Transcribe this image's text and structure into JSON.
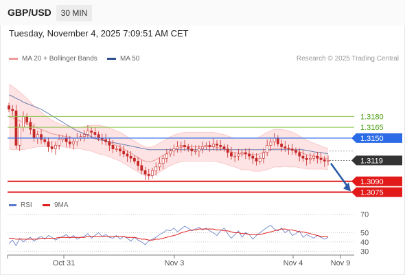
{
  "header": {
    "symbol": "GBP/USD",
    "timeframe": "30 MIN"
  },
  "datetime": "Tuesday, November 4, 2025 7:09:51 AM CET",
  "legend": {
    "ma20_label": "MA 20 + Bollinger Bands",
    "ma50_label": "MA 50",
    "credit": "Research © 2025 Trading Central",
    "rsi_label": "RSI",
    "ma9_label": "9MA"
  },
  "colors": {
    "candle": "#c62828",
    "ma50": "#6b7fb0",
    "ma20": "#ef9a9a",
    "band_fill": "#fde3e3",
    "resistance_line": "#8bc34a",
    "resistance_text": "#4a9e13",
    "pivot": "#2b6be6",
    "support": "#e21a1a",
    "arrow": "#2b5ba8",
    "rsi": "#6f86c8",
    "rsi_ma": "#e21a1a"
  },
  "chart_data": [
    {
      "type": "candlestick",
      "title": "GBP/USD",
      "timeframe": "30 MIN",
      "x_tick_labels": [
        "Oct 31",
        "Nov 3",
        "Nov 4",
        "Nov 9"
      ],
      "ylim": [
        1.3065,
        1.323
      ],
      "levels": [
        {
          "value": 1.318,
          "label": "1.3180",
          "role": "resistance"
        },
        {
          "value": 1.3165,
          "label": "1.3165",
          "role": "resistance"
        },
        {
          "value": 1.315,
          "label": "1.3150",
          "role": "pivot"
        },
        {
          "value": 1.309,
          "label": "1.3090",
          "role": "support"
        },
        {
          "value": 1.3075,
          "label": "1.3075",
          "role": "support"
        }
      ],
      "last_price": {
        "value": 1.3119,
        "label": "1.3119"
      },
      "forecast_arrow": {
        "from": 1.3115,
        "to": 1.3078
      },
      "closes": [
        1.319,
        1.3188,
        1.314,
        1.3165,
        1.318,
        1.3172,
        1.3162,
        1.315,
        1.3155,
        1.3148,
        1.3145,
        1.3138,
        1.3135,
        1.314,
        1.3148,
        1.315,
        1.3145,
        1.3142,
        1.3145,
        1.315,
        1.3152,
        1.3155,
        1.316,
        1.3158,
        1.3155,
        1.315,
        1.3148,
        1.3145,
        1.314,
        1.3135,
        1.3135,
        1.3132,
        1.3128,
        1.3125,
        1.3122,
        1.3118,
        1.3112,
        1.3105,
        1.31,
        1.3098,
        1.3105,
        1.311,
        1.3115,
        1.3122,
        1.3128,
        1.3132,
        1.3135,
        1.3138,
        1.314,
        1.3138,
        1.3135,
        1.3132,
        1.3132,
        1.3135,
        1.3138,
        1.314,
        1.3138,
        1.3142,
        1.314,
        1.3138,
        1.3135,
        1.313,
        1.3125,
        1.3125,
        1.3128,
        1.313,
        1.3128,
        1.3125,
        1.3122,
        1.3118,
        1.3122,
        1.313,
        1.314,
        1.3145,
        1.315,
        1.3142,
        1.3138,
        1.3136,
        1.3135,
        1.3133,
        1.313,
        1.3125,
        1.3122,
        1.312,
        1.3122,
        1.3125,
        1.3122,
        1.312,
        1.3118,
        1.3119
      ],
      "ma50": [
        1.321,
        1.3208,
        1.3205,
        1.3203,
        1.32,
        1.3198,
        1.3196,
        1.3194,
        1.3192,
        1.319,
        1.3187,
        1.3184,
        1.3181,
        1.3178,
        1.3175,
        1.3172,
        1.3169,
        1.3166,
        1.3163,
        1.316,
        1.3158,
        1.3156,
        1.3154,
        1.3152,
        1.315,
        1.3148,
        1.3147,
        1.3146,
        1.3145,
        1.3144,
        1.3143,
        1.3142,
        1.3141,
        1.314,
        1.3139,
        1.3138,
        1.3137,
        1.3136,
        1.3135,
        1.3134,
        1.3134,
        1.3134,
        1.3134,
        1.3134,
        1.3134,
        1.3134,
        1.3134,
        1.3134,
        1.3134,
        1.3134,
        1.3134,
        1.3134,
        1.3134,
        1.3134,
        1.3134,
        1.3134,
        1.3134,
        1.3134,
        1.3134,
        1.3134,
        1.3134,
        1.3134,
        1.3134,
        1.3134,
        1.3134,
        1.3134,
        1.3134,
        1.3134,
        1.3134,
        1.3134,
        1.3134,
        1.3134,
        1.3134,
        1.3134,
        1.3134,
        1.3134,
        1.3134,
        1.3134,
        1.3134,
        1.3134,
        1.3134,
        1.3134,
        1.3134,
        1.3133,
        1.3132,
        1.3131,
        1.313,
        1.313,
        1.3129,
        1.3128
      ],
      "ma20": [
        1.318,
        1.3178,
        1.3176,
        1.3174,
        1.3172,
        1.317,
        1.3168,
        1.3166,
        1.3164,
        1.3162,
        1.316,
        1.3158,
        1.3156,
        1.3155,
        1.3154,
        1.3153,
        1.3152,
        1.3151,
        1.315,
        1.315,
        1.315,
        1.315,
        1.315,
        1.315,
        1.3149,
        1.3148,
        1.3147,
        1.3146,
        1.3144,
        1.3142,
        1.314,
        1.3138,
        1.3135,
        1.3132,
        1.3129,
        1.3126,
        1.3123,
        1.312,
        1.3118,
        1.3117,
        1.3118,
        1.312,
        1.3123,
        1.3126,
        1.3129,
        1.3132,
        1.3134,
        1.3136,
        1.3137,
        1.3138,
        1.3138,
        1.3138,
        1.3138,
        1.3138,
        1.3138,
        1.3138,
        1.3138,
        1.3138,
        1.3137,
        1.3136,
        1.3135,
        1.3133,
        1.3131,
        1.313,
        1.3129,
        1.3128,
        1.3128,
        1.3128,
        1.3127,
        1.3127,
        1.3128,
        1.313,
        1.3132,
        1.3134,
        1.3136,
        1.3136,
        1.3136,
        1.3136,
        1.3135,
        1.3134,
        1.3133,
        1.3131,
        1.3129,
        1.3127,
        1.3126,
        1.3125,
        1.3124,
        1.3123,
        1.3122,
        1.3121
      ],
      "bb_upper": [
        1.3225,
        1.3222,
        1.3218,
        1.3214,
        1.321,
        1.3205,
        1.32,
        1.3195,
        1.319,
        1.3186,
        1.3182,
        1.3178,
        1.3175,
        1.3172,
        1.317,
        1.3168,
        1.3167,
        1.3166,
        1.3165,
        1.3165,
        1.3165,
        1.3166,
        1.3167,
        1.3168,
        1.3168,
        1.3168,
        1.3167,
        1.3166,
        1.3164,
        1.3162,
        1.316,
        1.3158,
        1.3155,
        1.3152,
        1.3149,
        1.3146,
        1.3143,
        1.314,
        1.3138,
        1.3137,
        1.3138,
        1.314,
        1.3143,
        1.3146,
        1.3149,
        1.3152,
        1.3154,
        1.3156,
        1.3157,
        1.3158,
        1.3158,
        1.3158,
        1.3158,
        1.3158,
        1.3158,
        1.3158,
        1.3158,
        1.3158,
        1.3157,
        1.3156,
        1.3155,
        1.3153,
        1.3151,
        1.315,
        1.315,
        1.315,
        1.315,
        1.315,
        1.315,
        1.315,
        1.3152,
        1.3155,
        1.3158,
        1.316,
        1.3162,
        1.3162,
        1.3162,
        1.3161,
        1.316,
        1.3158,
        1.3156,
        1.3153,
        1.315,
        1.3147,
        1.3145,
        1.3143,
        1.3141,
        1.3139,
        1.3137,
        1.3136
      ],
      "bb_lower": [
        1.3135,
        1.3134,
        1.3134,
        1.3134,
        1.3134,
        1.3135,
        1.3136,
        1.3137,
        1.3138,
        1.3138,
        1.3138,
        1.3138,
        1.3137,
        1.3138,
        1.3138,
        1.3138,
        1.3137,
        1.3136,
        1.3135,
        1.3135,
        1.3135,
        1.3134,
        1.3133,
        1.3132,
        1.313,
        1.3128,
        1.3127,
        1.3126,
        1.3124,
        1.3122,
        1.312,
        1.3118,
        1.3115,
        1.3112,
        1.3109,
        1.3106,
        1.3103,
        1.31,
        1.3098,
        1.3097,
        1.3098,
        1.31,
        1.3103,
        1.3106,
        1.3109,
        1.3112,
        1.3114,
        1.3116,
        1.3117,
        1.3118,
        1.3118,
        1.3118,
        1.3118,
        1.3118,
        1.3118,
        1.3118,
        1.3118,
        1.3118,
        1.3117,
        1.3116,
        1.3115,
        1.3113,
        1.3111,
        1.311,
        1.3108,
        1.3106,
        1.3106,
        1.3106,
        1.3104,
        1.3104,
        1.3104,
        1.3105,
        1.3106,
        1.3108,
        1.311,
        1.311,
        1.311,
        1.3111,
        1.311,
        1.311,
        1.311,
        1.3109,
        1.3108,
        1.3107,
        1.3107,
        1.3107,
        1.3107,
        1.3107,
        1.3107,
        1.3106
      ]
    },
    {
      "type": "line",
      "title": "RSI",
      "ylim": [
        25,
        75
      ],
      "y_ticks": [
        30,
        40,
        50,
        70
      ],
      "series": [
        {
          "name": "RSI",
          "values": [
            38,
            42,
            36,
            44,
            40,
            43,
            45,
            41,
            44,
            46,
            43,
            47,
            45,
            42,
            44,
            46,
            48,
            44,
            47,
            43,
            45,
            46,
            49,
            44,
            47,
            50,
            46,
            48,
            45,
            44,
            47,
            43,
            46,
            44,
            41,
            45,
            42,
            40,
            37,
            41,
            43,
            45,
            48,
            50,
            53,
            52,
            55,
            51,
            54,
            57,
            55,
            52,
            54,
            56,
            53,
            55,
            52,
            50,
            47,
            52,
            55,
            49,
            44,
            48,
            52,
            45,
            50,
            48,
            43,
            47,
            50,
            53,
            56,
            58,
            54,
            52,
            55,
            50,
            53,
            47,
            49,
            52,
            45,
            48,
            46,
            44,
            47,
            45,
            43,
            45
          ]
        },
        {
          "name": "9MA",
          "values": [
            44,
            44,
            43,
            43,
            43,
            43,
            43,
            43,
            43,
            44,
            44,
            44,
            44,
            44,
            45,
            45,
            45,
            45,
            45,
            45,
            45,
            45,
            46,
            46,
            46,
            46,
            46,
            46,
            46,
            46,
            46,
            46,
            46,
            45,
            45,
            45,
            44,
            43,
            43,
            42,
            42,
            43,
            43,
            44,
            45,
            46,
            47,
            48,
            50,
            51,
            52,
            53,
            53,
            54,
            54,
            54,
            54,
            54,
            53,
            53,
            52,
            52,
            51,
            50,
            50,
            49,
            49,
            48,
            48,
            48,
            48,
            49,
            50,
            51,
            52,
            53,
            54,
            54,
            53,
            53,
            52,
            51,
            51,
            50,
            49,
            48,
            47,
            46,
            46,
            46
          ]
        }
      ]
    }
  ]
}
